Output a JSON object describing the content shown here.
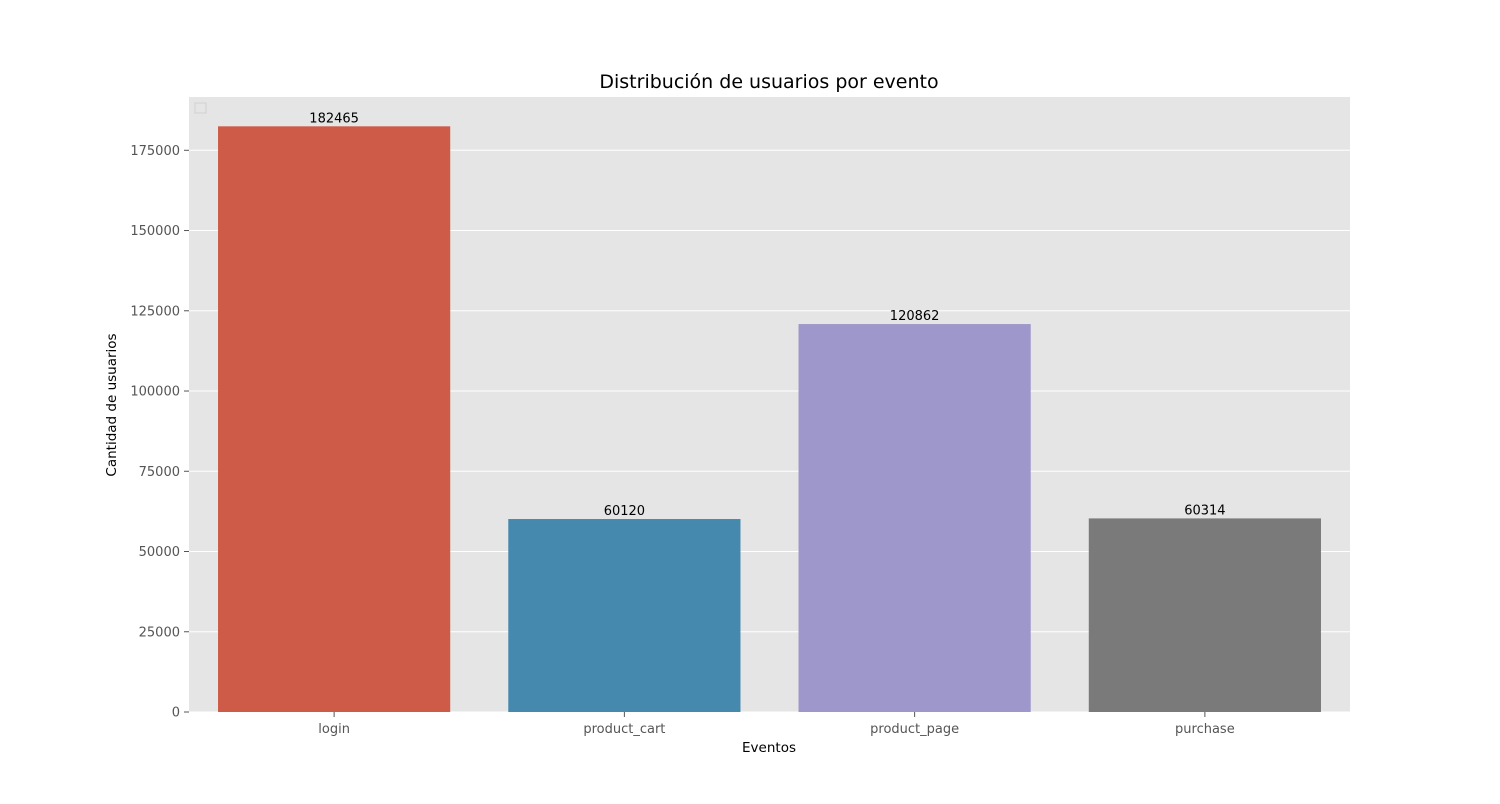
{
  "chart_data": {
    "type": "bar",
    "title": "Distribución de usuarios por evento",
    "xlabel": "Eventos",
    "ylabel": "Cantidad de usuarios",
    "categories": [
      "login",
      "product_cart",
      "product_page",
      "purchase"
    ],
    "values": [
      182465,
      60120,
      120862,
      60314
    ],
    "data_labels": [
      "182465",
      "60120",
      "120862",
      "60314"
    ],
    "ylim": [
      0,
      191600
    ],
    "yticks": [
      0,
      25000,
      50000,
      75000,
      100000,
      125000,
      150000,
      175000
    ],
    "ytick_labels": [
      "0",
      "25000",
      "50000",
      "75000",
      "100000",
      "125000",
      "150000",
      "175000"
    ],
    "grid": true,
    "legend": "upper-left (empty)",
    "colors": [
      "#cd5b48",
      "#4689ae",
      "#9e97cb",
      "#7a7a7a"
    ],
    "background": "#e5e5e5"
  }
}
